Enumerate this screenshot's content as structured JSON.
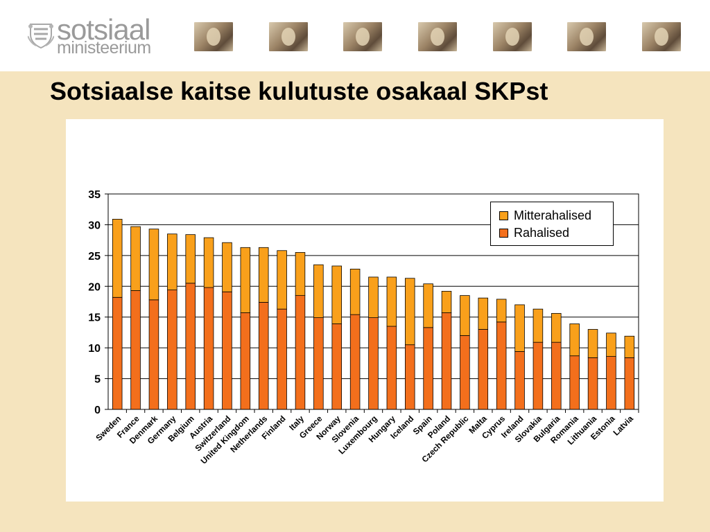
{
  "header": {
    "logo_line1": "sotsiaal",
    "logo_line2": "ministeerium",
    "logo_icon": "coat-of-arms-icon",
    "photos": [
      "person-hand-to-face",
      "woman-portrait",
      "young-man",
      "man-portrait",
      "woman-thinking",
      "person-covering-face",
      "baby"
    ]
  },
  "slide": {
    "title": "Sotsiaalse kaitse kulutuste osakaal SKPst"
  },
  "colors": {
    "page_background": "#f5e4be",
    "rahalised": "#f36f1c",
    "mitterahalised": "#f9a01b"
  },
  "chart_data": {
    "type": "bar",
    "stacked": true,
    "categories": [
      "Sweden",
      "France",
      "Denmark",
      "Germany",
      "Belgium",
      "Austria",
      "Switzerland",
      "United Kingdom",
      "Netherlands",
      "Finland",
      "Italy",
      "Greece",
      "Norway",
      "Slovenia",
      "Luxembourg",
      "Hungary",
      "Iceland",
      "Spain",
      "Poland",
      "Czech Republic",
      "Malta",
      "Cyprus",
      "Ireland",
      "Slovakia",
      "Bulgaria",
      "Romania",
      "Lithuania",
      "Estonia",
      "Latvia"
    ],
    "series": [
      {
        "name": "Rahalised",
        "values": [
          18.2,
          19.3,
          17.8,
          19.4,
          20.5,
          19.8,
          19.1,
          15.7,
          17.4,
          16.3,
          18.5,
          14.9,
          13.9,
          15.4,
          14.9,
          13.5,
          10.5,
          13.3,
          15.7,
          12.0,
          13.0,
          14.2,
          9.4,
          10.9,
          10.9,
          8.7,
          8.4,
          8.6,
          8.4
        ],
        "color": "#f36f1c"
      },
      {
        "name": "Mitterahalised",
        "values": [
          12.7,
          10.4,
          11.5,
          9.1,
          7.9,
          8.1,
          8.0,
          10.6,
          8.9,
          9.5,
          7.0,
          8.6,
          9.4,
          7.4,
          6.6,
          8.0,
          10.8,
          7.1,
          3.5,
          6.5,
          5.1,
          3.7,
          7.6,
          5.4,
          4.7,
          5.2,
          4.6,
          3.8,
          3.5
        ],
        "color": "#f9a01b"
      }
    ],
    "title": "",
    "xlabel": "",
    "ylabel": "",
    "ylim": [
      0,
      35
    ],
    "yticks": [
      0,
      5,
      10,
      15,
      20,
      25,
      30,
      35
    ],
    "grid": "horizontal",
    "legend_position": "top-right",
    "legend_order": [
      "Mitterahalised",
      "Rahalised"
    ]
  }
}
